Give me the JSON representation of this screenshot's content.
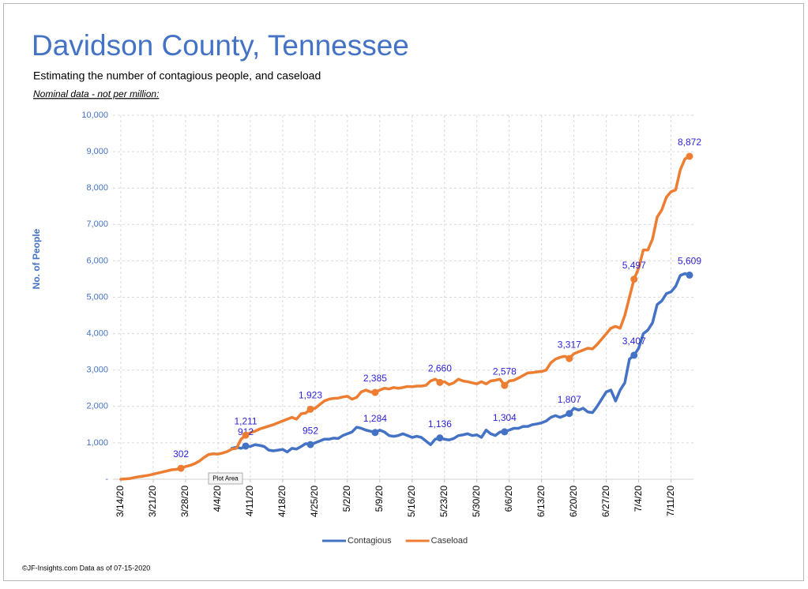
{
  "chart_data": {
    "type": "line",
    "title": "Davidson County, Tennessee",
    "subtitle": "Estimating  the number of contagious people, and caseload",
    "note": "Nominal data - not per million:",
    "y_label": "No. of People",
    "footer": "©JF-Insights.com  Data as of 07-15-2020",
    "tooltip": "Plot Area",
    "categories": [
      "3/14/20",
      null,
      null,
      null,
      null,
      null,
      null,
      "3/21/20",
      null,
      null,
      null,
      null,
      null,
      null,
      "3/28/20",
      null,
      null,
      null,
      null,
      null,
      null,
      "4/4/20",
      null,
      null,
      null,
      null,
      null,
      null,
      "4/11/20",
      null,
      null,
      null,
      null,
      null,
      null,
      "4/18/20",
      null,
      null,
      null,
      null,
      null,
      null,
      "4/25/20",
      null,
      null,
      null,
      null,
      null,
      null,
      "5/2/20",
      null,
      null,
      null,
      null,
      null,
      null,
      "5/9/20",
      null,
      null,
      null,
      null,
      null,
      null,
      "5/16/20",
      null,
      null,
      null,
      null,
      null,
      null,
      "5/23/20",
      null,
      null,
      null,
      null,
      null,
      null,
      "5/30/20",
      null,
      null,
      null,
      null,
      null,
      null,
      "6/6/20",
      null,
      null,
      null,
      null,
      null,
      null,
      "6/13/20",
      null,
      null,
      null,
      null,
      null,
      null,
      "6/20/20",
      null,
      null,
      null,
      null,
      null,
      null,
      "6/27/20",
      null,
      null,
      null,
      null,
      null,
      null,
      "7/4/20",
      null,
      null,
      null,
      null,
      null,
      null,
      "7/11/20",
      null,
      null,
      null,
      null
    ],
    "series": [
      {
        "name": "Contagious",
        "color": "#4472c4",
        "values": [
          null,
          null,
          null,
          null,
          null,
          null,
          null,
          null,
          null,
          null,
          null,
          null,
          null,
          null,
          null,
          null,
          null,
          null,
          null,
          null,
          null,
          null,
          null,
          null,
          850,
          880,
          850,
          912,
          900,
          950,
          930,
          900,
          800,
          780,
          800,
          820,
          750,
          850,
          830,
          900,
          980,
          952,
          1000,
          1050,
          1100,
          1100,
          1130,
          1120,
          1200,
          1250,
          1300,
          1430,
          1400,
          1350,
          1320,
          1284,
          1350,
          1300,
          1200,
          1180,
          1200,
          1250,
          1200,
          1150,
          1180,
          1150,
          1050,
          950,
          1100,
          1136,
          1100,
          1080,
          1120,
          1200,
          1220,
          1250,
          1200,
          1220,
          1150,
          1350,
          1250,
          1200,
          1300,
          1304,
          1350,
          1400,
          1400,
          1450,
          1450,
          1500,
          1520,
          1550,
          1600,
          1700,
          1750,
          1700,
          1750,
          1807,
          1950,
          1900,
          1950,
          1850,
          1830,
          2000,
          2200,
          2400,
          2450,
          2150,
          2450,
          2650,
          3300,
          3407,
          3600,
          4000,
          4100,
          4300,
          4800,
          4900,
          5100,
          5150,
          5300,
          5600,
          5650,
          5609
        ],
        "value_labels": [
          null,
          null,
          null,
          null,
          null,
          null,
          null,
          null,
          null,
          null,
          null,
          null,
          null,
          null,
          null,
          null,
          null,
          null,
          null,
          null,
          null,
          null,
          null,
          null,
          null,
          null,
          null,
          "912",
          null,
          null,
          null,
          null,
          null,
          null,
          null,
          null,
          null,
          null,
          null,
          null,
          null,
          "952",
          null,
          null,
          null,
          null,
          null,
          null,
          null,
          null,
          null,
          null,
          null,
          null,
          null,
          "1,284",
          null,
          null,
          null,
          null,
          null,
          null,
          null,
          null,
          null,
          null,
          null,
          null,
          null,
          "1,136",
          null,
          null,
          null,
          null,
          null,
          null,
          null,
          null,
          null,
          null,
          null,
          null,
          null,
          "1,304",
          null,
          null,
          null,
          null,
          null,
          null,
          null,
          null,
          null,
          null,
          null,
          null,
          null,
          "1,807",
          null,
          null,
          null,
          null,
          null,
          null,
          null,
          null,
          null,
          null,
          null,
          null,
          null,
          "3,407",
          null,
          null,
          null,
          null,
          null,
          null,
          null,
          null,
          null,
          null,
          null,
          "5,609"
        ]
      },
      {
        "name": "Caseload",
        "color": "#ed7d31",
        "values": [
          0,
          10,
          20,
          50,
          70,
          90,
          110,
          140,
          170,
          200,
          230,
          260,
          270,
          302,
          350,
          380,
          430,
          500,
          600,
          680,
          700,
          690,
          720,
          760,
          830,
          850,
          1100,
          1211,
          1280,
          1320,
          1380,
          1420,
          1460,
          1500,
          1550,
          1600,
          1650,
          1700,
          1650,
          1800,
          1820,
          1923,
          1950,
          2050,
          2150,
          2200,
          2220,
          2230,
          2260,
          2280,
          2200,
          2250,
          2400,
          2450,
          2400,
          2385,
          2450,
          2500,
          2480,
          2520,
          2500,
          2520,
          2550,
          2540,
          2560,
          2560,
          2580,
          2700,
          2750,
          2660,
          2680,
          2600,
          2650,
          2750,
          2700,
          2680,
          2650,
          2620,
          2680,
          2620,
          2700,
          2720,
          2750,
          2578,
          2700,
          2720,
          2780,
          2850,
          2920,
          2930,
          2950,
          2960,
          3000,
          3200,
          3300,
          3350,
          3380,
          3317,
          3450,
          3500,
          3550,
          3600,
          3580,
          3700,
          3850,
          4000,
          4150,
          4200,
          4150,
          4500,
          5000,
          5497,
          5800,
          6300,
          6300,
          6600,
          7200,
          7400,
          7750,
          7900,
          7950,
          8500,
          8800,
          8872
        ],
        "value_labels": [
          null,
          null,
          null,
          null,
          null,
          null,
          null,
          null,
          null,
          null,
          null,
          null,
          null,
          "302",
          null,
          null,
          null,
          null,
          null,
          null,
          null,
          null,
          null,
          null,
          null,
          null,
          null,
          "1,211",
          null,
          null,
          null,
          null,
          null,
          null,
          null,
          null,
          null,
          null,
          null,
          null,
          null,
          "1,923",
          null,
          null,
          null,
          null,
          null,
          null,
          null,
          null,
          null,
          null,
          null,
          null,
          null,
          "2,385",
          null,
          null,
          null,
          null,
          null,
          null,
          null,
          null,
          null,
          null,
          null,
          null,
          null,
          "2,660",
          null,
          null,
          null,
          null,
          null,
          null,
          null,
          null,
          null,
          null,
          null,
          null,
          null,
          "2,578",
          null,
          null,
          null,
          null,
          null,
          null,
          null,
          null,
          null,
          null,
          null,
          null,
          null,
          "3,317",
          null,
          null,
          null,
          null,
          null,
          null,
          null,
          null,
          null,
          null,
          null,
          null,
          null,
          "5,497",
          null,
          null,
          null,
          null,
          null,
          null,
          null,
          null,
          null,
          null,
          null,
          "8,872"
        ]
      }
    ],
    "data_label_color": "#2b1fd9",
    "ylim": [
      0,
      10000
    ],
    "yticks": [
      {
        "value": 0,
        "label": "-"
      },
      {
        "value": 1000,
        "label": "1,000"
      },
      {
        "value": 2000,
        "label": "2,000"
      },
      {
        "value": 3000,
        "label": "3,000"
      },
      {
        "value": 4000,
        "label": "4,000"
      },
      {
        "value": 5000,
        "label": "5,000"
      },
      {
        "value": 6000,
        "label": "6,000"
      },
      {
        "value": 7000,
        "label": "7,000"
      },
      {
        "value": 8000,
        "label": "8,000"
      },
      {
        "value": 9000,
        "label": "9,000"
      },
      {
        "value": 10000,
        "label": "10,000"
      }
    ],
    "grid": true,
    "legend": "bottom"
  }
}
